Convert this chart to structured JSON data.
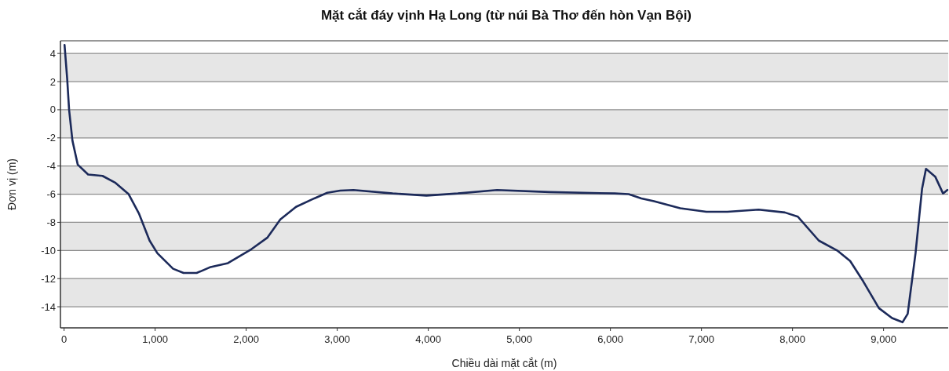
{
  "chart_data": {
    "type": "line",
    "title": "Mặt cắt đáy vịnh Hạ Long (từ núi Bà Thơ đến hòn Vạn Bội)",
    "xlabel": "Chiều dài mặt cắt (m)",
    "ylabel": "Đơn vị (m)",
    "x": [
      5,
      34,
      55,
      92,
      150,
      264,
      422,
      565,
      709,
      824,
      939,
      1025,
      1197,
      1312,
      1456,
      1600,
      1800,
      2059,
      2231,
      2375,
      2547,
      2748,
      2891,
      3033,
      3178,
      3609,
      3980,
      4324,
      4755,
      5331,
      6047,
      6200,
      6340,
      6478,
      6767,
      7054,
      7284,
      7628,
      7916,
      8059,
      8289,
      8490,
      8633,
      8777,
      8949,
      9093,
      9208,
      9265,
      9351,
      9423,
      9466,
      9567,
      9653,
      9700
    ],
    "series": [
      {
        "color": "#1c2a5a",
        "values": [
          4.6,
          2.2,
          0.0,
          -2.2,
          -3.9,
          -4.6,
          -4.7,
          -5.2,
          -6.0,
          -7.4,
          -9.3,
          -10.2,
          -11.3,
          -11.6,
          -11.6,
          -11.2,
          -10.9,
          -9.9,
          -9.1,
          -7.8,
          -6.9,
          -6.3,
          -5.9,
          -5.75,
          -5.7,
          -5.95,
          -6.1,
          -5.95,
          -5.7,
          -5.85,
          -5.95,
          -6.0,
          -6.3,
          -6.5,
          -7.0,
          -7.25,
          -7.25,
          -7.1,
          -7.3,
          -7.6,
          -9.3,
          -10.0,
          -10.75,
          -12.2,
          -14.1,
          -14.8,
          -15.1,
          -14.5,
          -10.2,
          -5.6,
          -4.2,
          -4.75,
          -5.95,
          -5.7
        ]
      }
    ],
    "xlim": [
      -40,
      9710
    ],
    "ylim": [
      -15.5,
      4.9
    ],
    "xticks": [
      0,
      {
        "value": 1000,
        "label": "1,000"
      },
      {
        "value": 2000,
        "label": "2,000"
      },
      {
        "value": 3000,
        "label": "3,000"
      },
      {
        "value": 4000,
        "label": "4,000"
      },
      {
        "value": 5000,
        "label": "5,000"
      },
      {
        "value": 6000,
        "label": "6,000"
      },
      {
        "value": 7000,
        "label": "7,000"
      },
      {
        "value": 8000,
        "label": "8,000"
      },
      {
        "value": 9000,
        "label": "9,000"
      }
    ],
    "yticks": [
      -14,
      -12,
      -10,
      -8,
      -6,
      -4,
      -2,
      0,
      2,
      4
    ],
    "grid": "y",
    "line_style": "solid"
  }
}
